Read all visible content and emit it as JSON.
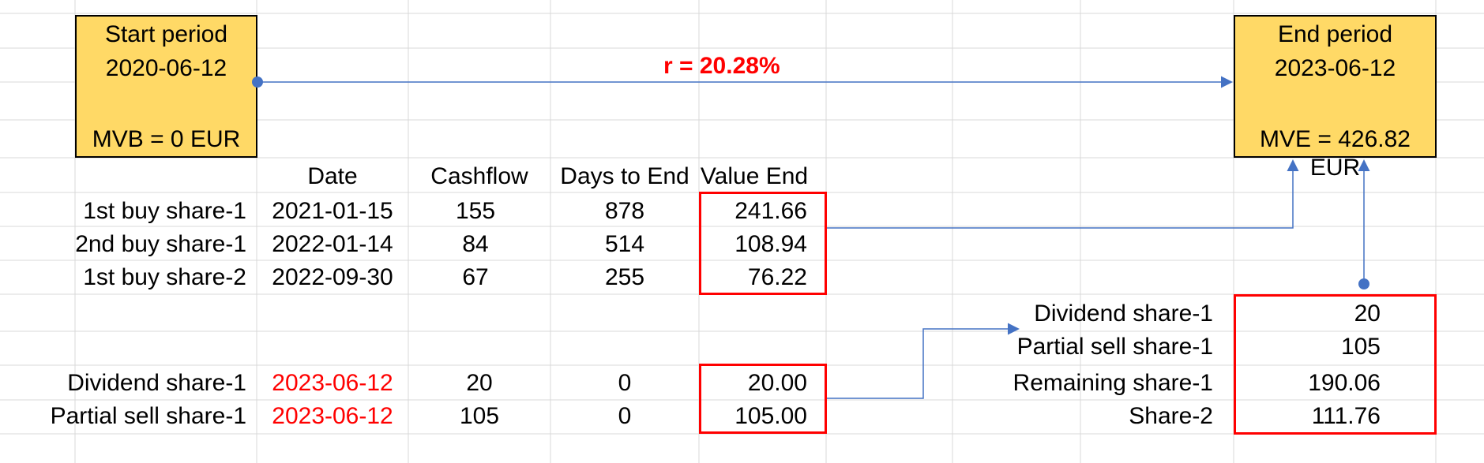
{
  "start_box": {
    "title": "Start period",
    "date": "2020-06-12",
    "mv": "MVB = 0 EUR"
  },
  "end_box": {
    "title": "End period",
    "date": "2023-06-12",
    "mv": "MVE = 426.82 EUR"
  },
  "rate_label": "r =  20.28%",
  "headers": {
    "date": "Date",
    "cashflow": "Cashflow",
    "days": "Days to End",
    "value": "Value End"
  },
  "rows": [
    {
      "label": "1st buy share-1",
      "date": "2021-01-15",
      "cashflow": "155",
      "days": "878",
      "value": "241.66"
    },
    {
      "label": "2nd buy share-1",
      "date": "2022-01-14",
      "cashflow": "84",
      "days": "514",
      "value": "108.94"
    },
    {
      "label": "1st buy share-2",
      "date": "2022-09-30",
      "cashflow": "67",
      "days": "255",
      "value": "76.22"
    }
  ],
  "rows2": [
    {
      "label": "Dividend share-1",
      "date": "2023-06-12",
      "cashflow": "20",
      "days": "0",
      "value": "20.00"
    },
    {
      "label": "Partial sell share-1",
      "date": "2023-06-12",
      "cashflow": "105",
      "days": "0",
      "value": "105.00"
    }
  ],
  "summary": [
    {
      "label": "Dividend share-1",
      "value": "20"
    },
    {
      "label": "Partial sell share-1",
      "value": "105"
    },
    {
      "label": "Remaining share-1",
      "value": "190.06"
    },
    {
      "label": "Share-2",
      "value": "111.76"
    }
  ],
  "colors": {
    "accent": "#ff0000",
    "box_fill": "#ffd966",
    "arrow": "#4472c4",
    "grid": "#d9d9d9"
  }
}
